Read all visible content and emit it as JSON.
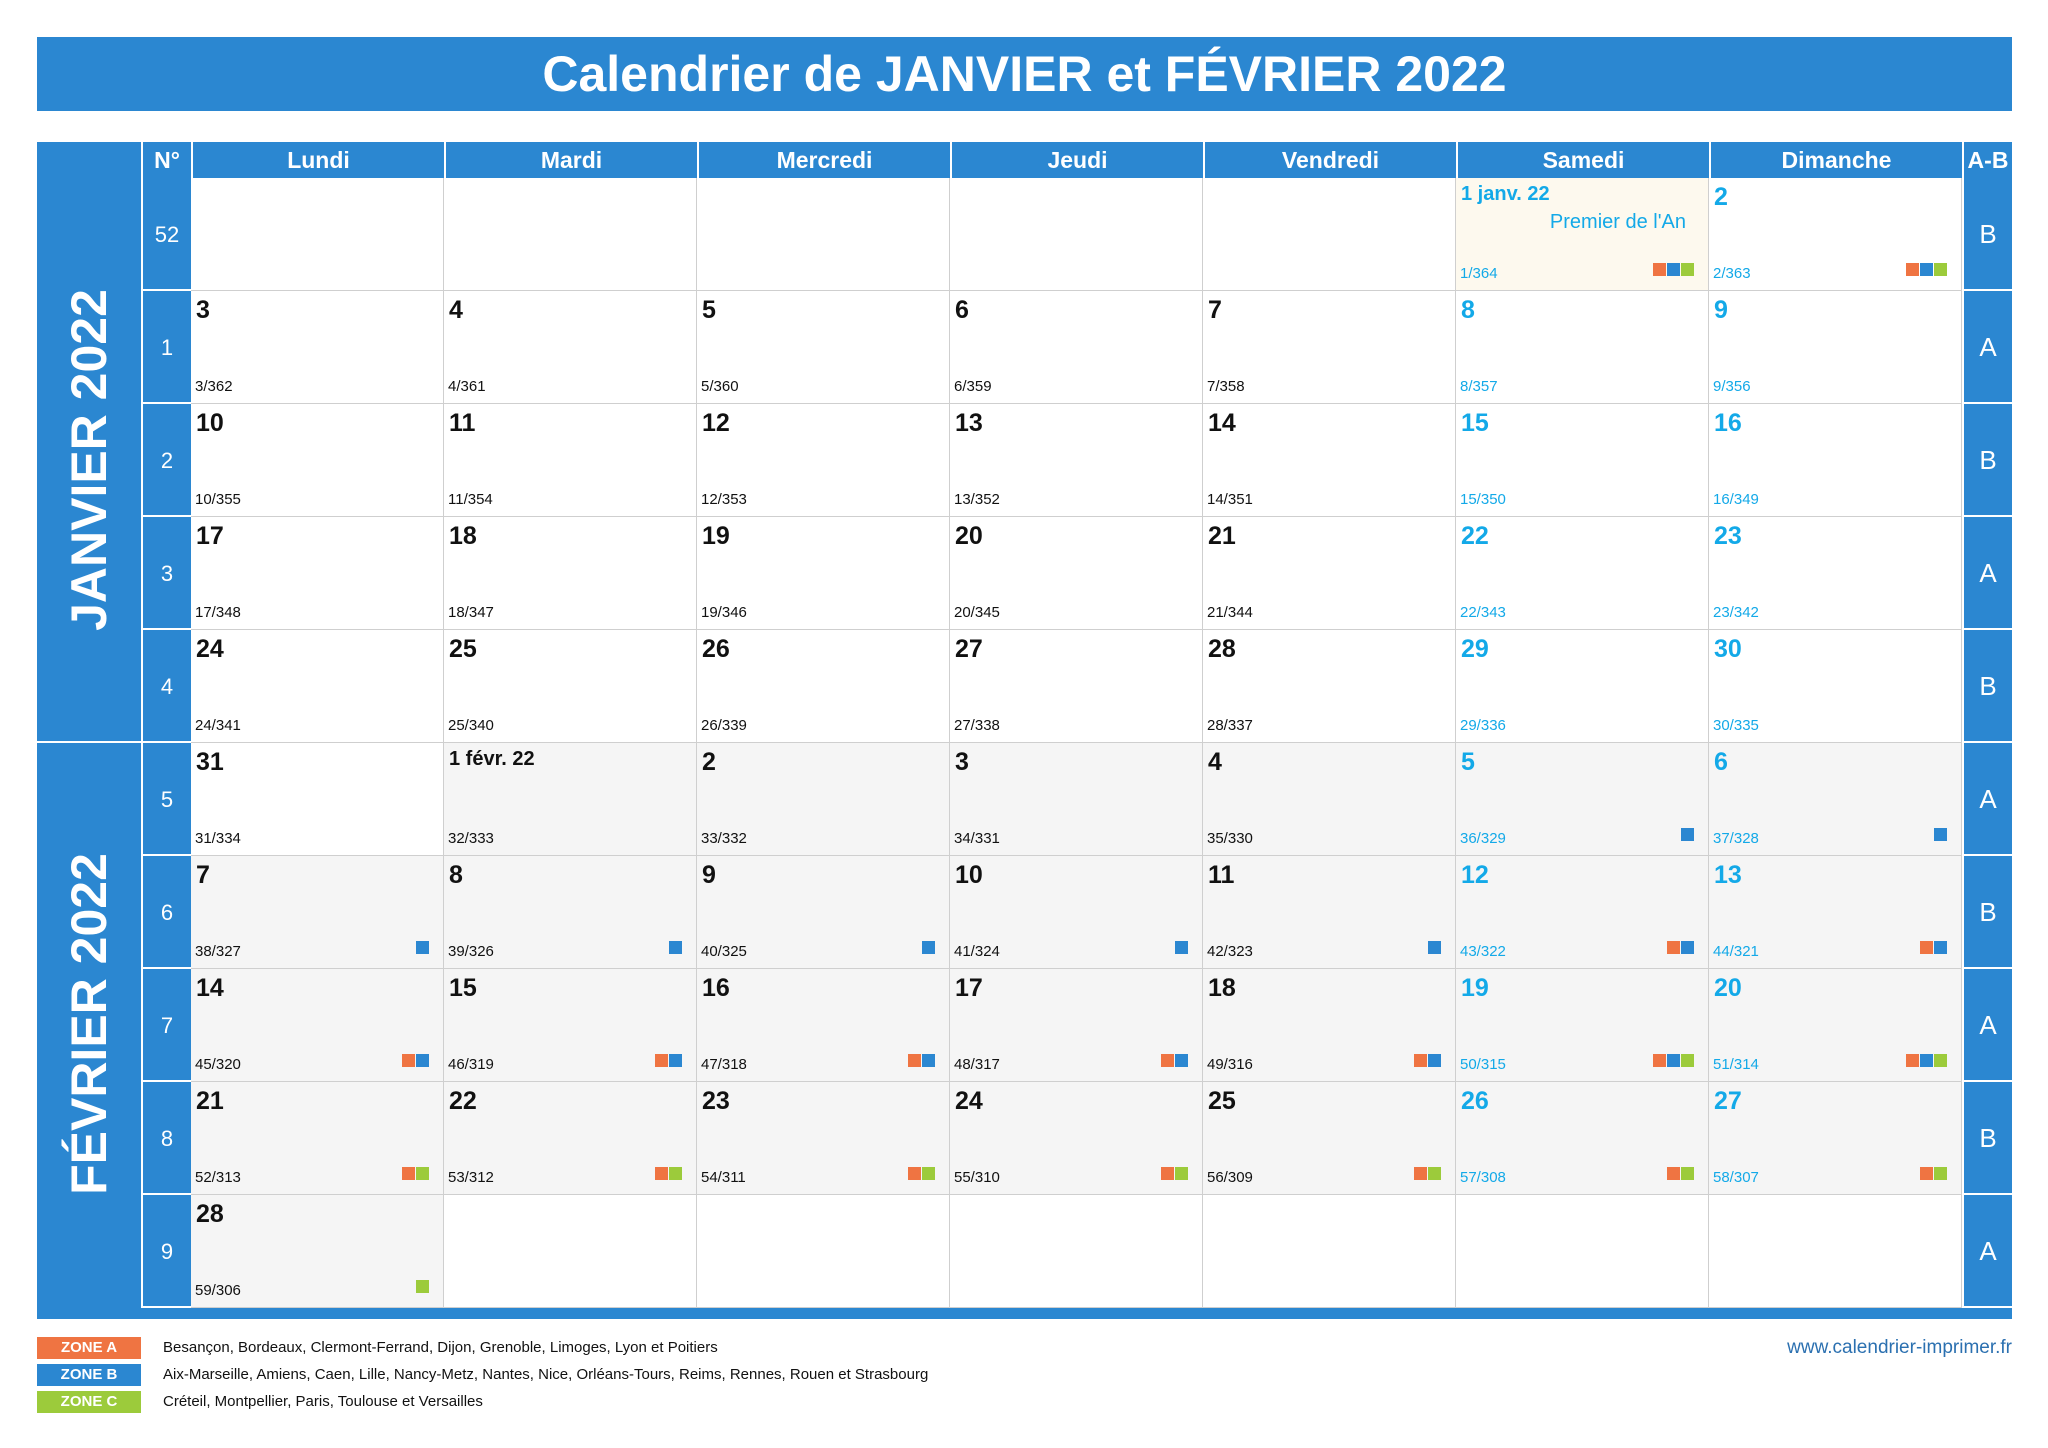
{
  "title": "Calendrier de JANVIER et FÉVRIER 2022",
  "header": {
    "week_label": "N°",
    "days": [
      "Lundi",
      "Mardi",
      "Mercredi",
      "Jeudi",
      "Vendredi",
      "Samedi",
      "Dimanche"
    ],
    "ab_label": "A-B"
  },
  "months": [
    "JANVIER 2022",
    "FÉVRIER 2022"
  ],
  "weeks": [
    {
      "num": "52",
      "ab": "B",
      "days": [
        null,
        null,
        null,
        null,
        null,
        {
          "label": "1 janv. 22",
          "count": "1/364",
          "holiday": "Premier de l'An",
          "zones": [
            "a",
            "b",
            "c"
          ]
        },
        {
          "label": "2",
          "count": "2/363",
          "zones": [
            "a",
            "b",
            "c"
          ]
        }
      ]
    },
    {
      "num": "1",
      "ab": "A",
      "days": [
        {
          "label": "3",
          "count": "3/362"
        },
        {
          "label": "4",
          "count": "4/361"
        },
        {
          "label": "5",
          "count": "5/360"
        },
        {
          "label": "6",
          "count": "6/359"
        },
        {
          "label": "7",
          "count": "7/358"
        },
        {
          "label": "8",
          "count": "8/357"
        },
        {
          "label": "9",
          "count": "9/356"
        }
      ]
    },
    {
      "num": "2",
      "ab": "B",
      "days": [
        {
          "label": "10",
          "count": "10/355"
        },
        {
          "label": "11",
          "count": "11/354"
        },
        {
          "label": "12",
          "count": "12/353"
        },
        {
          "label": "13",
          "count": "13/352"
        },
        {
          "label": "14",
          "count": "14/351"
        },
        {
          "label": "15",
          "count": "15/350"
        },
        {
          "label": "16",
          "count": "16/349"
        }
      ]
    },
    {
      "num": "3",
      "ab": "A",
      "days": [
        {
          "label": "17",
          "count": "17/348"
        },
        {
          "label": "18",
          "count": "18/347"
        },
        {
          "label": "19",
          "count": "19/346"
        },
        {
          "label": "20",
          "count": "20/345"
        },
        {
          "label": "21",
          "count": "21/344"
        },
        {
          "label": "22",
          "count": "22/343"
        },
        {
          "label": "23",
          "count": "23/342"
        }
      ]
    },
    {
      "num": "4",
      "ab": "B",
      "days": [
        {
          "label": "24",
          "count": "24/341"
        },
        {
          "label": "25",
          "count": "25/340"
        },
        {
          "label": "26",
          "count": "26/339"
        },
        {
          "label": "27",
          "count": "27/338"
        },
        {
          "label": "28",
          "count": "28/337"
        },
        {
          "label": "29",
          "count": "29/336"
        },
        {
          "label": "30",
          "count": "30/335"
        }
      ]
    },
    {
      "num": "5",
      "ab": "A",
      "days": [
        {
          "label": "31",
          "count": "31/334"
        },
        {
          "label": "1 févr. 22",
          "count": "32/333",
          "feb": true
        },
        {
          "label": "2",
          "count": "33/332",
          "feb": true
        },
        {
          "label": "3",
          "count": "34/331",
          "feb": true
        },
        {
          "label": "4",
          "count": "35/330",
          "feb": true
        },
        {
          "label": "5",
          "count": "36/329",
          "feb": true,
          "zones": [
            "b"
          ]
        },
        {
          "label": "6",
          "count": "37/328",
          "feb": true,
          "zones": [
            "b"
          ]
        }
      ]
    },
    {
      "num": "6",
      "ab": "B",
      "days": [
        {
          "label": "7",
          "count": "38/327",
          "feb": true,
          "zones": [
            "b"
          ]
        },
        {
          "label": "8",
          "count": "39/326",
          "feb": true,
          "zones": [
            "b"
          ]
        },
        {
          "label": "9",
          "count": "40/325",
          "feb": true,
          "zones": [
            "b"
          ]
        },
        {
          "label": "10",
          "count": "41/324",
          "feb": true,
          "zones": [
            "b"
          ]
        },
        {
          "label": "11",
          "count": "42/323",
          "feb": true,
          "zones": [
            "b"
          ]
        },
        {
          "label": "12",
          "count": "43/322",
          "feb": true,
          "zones": [
            "a",
            "b"
          ]
        },
        {
          "label": "13",
          "count": "44/321",
          "feb": true,
          "zones": [
            "a",
            "b"
          ]
        }
      ]
    },
    {
      "num": "7",
      "ab": "A",
      "days": [
        {
          "label": "14",
          "count": "45/320",
          "feb": true,
          "zones": [
            "a",
            "b"
          ]
        },
        {
          "label": "15",
          "count": "46/319",
          "feb": true,
          "zones": [
            "a",
            "b"
          ]
        },
        {
          "label": "16",
          "count": "47/318",
          "feb": true,
          "zones": [
            "a",
            "b"
          ]
        },
        {
          "label": "17",
          "count": "48/317",
          "feb": true,
          "zones": [
            "a",
            "b"
          ]
        },
        {
          "label": "18",
          "count": "49/316",
          "feb": true,
          "zones": [
            "a",
            "b"
          ]
        },
        {
          "label": "19",
          "count": "50/315",
          "feb": true,
          "zones": [
            "a",
            "b",
            "c"
          ]
        },
        {
          "label": "20",
          "count": "51/314",
          "feb": true,
          "zones": [
            "a",
            "b",
            "c"
          ]
        }
      ]
    },
    {
      "num": "8",
      "ab": "B",
      "days": [
        {
          "label": "21",
          "count": "52/313",
          "feb": true,
          "zones": [
            "a",
            "c"
          ]
        },
        {
          "label": "22",
          "count": "53/312",
          "feb": true,
          "zones": [
            "a",
            "c"
          ]
        },
        {
          "label": "23",
          "count": "54/311",
          "feb": true,
          "zones": [
            "a",
            "c"
          ]
        },
        {
          "label": "24",
          "count": "55/310",
          "feb": true,
          "zones": [
            "a",
            "c"
          ]
        },
        {
          "label": "25",
          "count": "56/309",
          "feb": true,
          "zones": [
            "a",
            "c"
          ]
        },
        {
          "label": "26",
          "count": "57/308",
          "feb": true,
          "zones": [
            "a",
            "c"
          ]
        },
        {
          "label": "27",
          "count": "58/307",
          "feb": true,
          "zones": [
            "a",
            "c"
          ]
        }
      ]
    },
    {
      "num": "9",
      "ab": "A",
      "days": [
        {
          "label": "28",
          "count": "59/306",
          "feb": true,
          "zones": [
            "c"
          ]
        },
        null,
        null,
        null,
        null,
        null,
        null
      ]
    }
  ],
  "legend": [
    {
      "zone": "ZONE A",
      "color": "#ef7442",
      "cities": "Besançon, Bordeaux, Clermont-Ferrand, Dijon, Grenoble, Limoges, Lyon et Poitiers"
    },
    {
      "zone": "ZONE B",
      "color": "#2b87d1",
      "cities": "Aix-Marseille, Amiens, Caen, Lille, Nancy-Metz, Nantes, Nice, Orléans-Tours, Reims, Rennes, Rouen et Strasbourg"
    },
    {
      "zone": "ZONE C",
      "color": "#9ccb3b",
      "cities": "Créteil, Montpellier, Paris, Toulouse et Versailles"
    }
  ],
  "website": "www.calendrier-imprimer.fr",
  "colors": {
    "primary": "#2b87d1",
    "weekend_text": "#13a9e8",
    "zone_a": "#ef7442",
    "zone_b": "#2b87d1",
    "zone_c": "#9ccb3b"
  }
}
